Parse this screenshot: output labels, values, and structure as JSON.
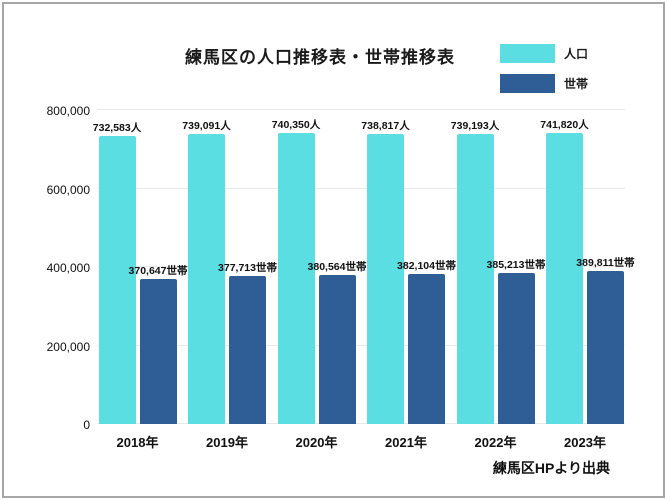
{
  "title": "練馬区の人口推移表・世帯推移表",
  "source": "練馬区HPより出典",
  "colors": {
    "population": "#5bdee2",
    "household": "#2e5e95",
    "gridline": "#e9e9e9",
    "frame_border": "#a6a6a6",
    "text": "#1a1a1a"
  },
  "legend": {
    "items": [
      {
        "label": "人口",
        "color": "#5bdee2"
      },
      {
        "label": "世帯",
        "color": "#2e5e95"
      }
    ]
  },
  "chart_data": {
    "type": "bar",
    "title": "練馬区の人口推移表・世帯推移表",
    "categories": [
      "2018年",
      "2019年",
      "2020年",
      "2021年",
      "2022年",
      "2023年"
    ],
    "series": [
      {
        "name": "人口",
        "unit": "人",
        "color": "#5bdee2",
        "values": [
          732583,
          739091,
          740350,
          738817,
          739193,
          741820
        ],
        "labels": [
          "732,583人",
          "739,091人",
          "740,350人",
          "738,817人",
          "739,193人",
          "741,820人"
        ]
      },
      {
        "name": "世帯",
        "unit": "世帯",
        "color": "#2e5e95",
        "values": [
          370647,
          377713,
          380564,
          382104,
          385213,
          389811
        ],
        "labels": [
          "370,647世帯",
          "377,713世帯",
          "380,564世帯",
          "382,104世帯",
          "385,213世帯",
          "389,811世帯"
        ]
      }
    ],
    "xlabel": "",
    "ylabel": "",
    "ylim": [
      0,
      800000
    ],
    "y_ticks": [
      0,
      200000,
      400000,
      600000,
      800000
    ],
    "y_tick_labels": [
      "0",
      "200,000",
      "400,000",
      "600,000",
      "800,000"
    ],
    "grid": true,
    "legend_position": "top-right",
    "source": "練馬区HPより出典"
  }
}
